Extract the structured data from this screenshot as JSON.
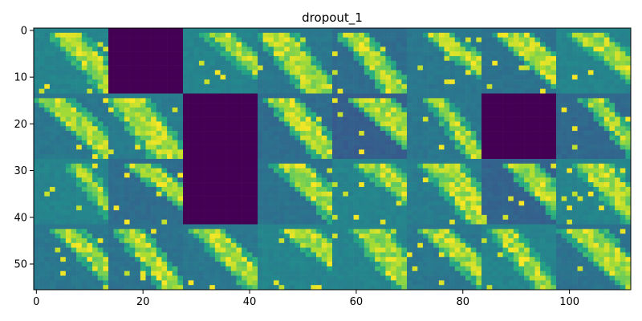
{
  "chart_data": {
    "type": "heatmap",
    "title": "dropout_1",
    "xlabel": "",
    "ylabel": "",
    "grid": false,
    "colormap": "viridis",
    "xlim": [
      -0.5,
      111.5
    ],
    "ylim": [
      55.5,
      -0.5
    ],
    "xticks": [
      0,
      20,
      40,
      60,
      80,
      100
    ],
    "yticks": [
      0,
      10,
      20,
      30,
      40,
      50
    ],
    "tile_grid": {
      "rows": 4,
      "cols": 8,
      "tile_size": 14
    },
    "tile_base_levels": [
      [
        0.45,
        0.0,
        0.45,
        0.4,
        0.36,
        0.4,
        0.38,
        0.45
      ],
      [
        0.4,
        0.42,
        0.0,
        0.36,
        0.3,
        0.4,
        0.0,
        0.34
      ],
      [
        0.45,
        0.36,
        0.0,
        0.38,
        0.45,
        0.42,
        0.32,
        0.45
      ],
      [
        0.4,
        0.38,
        0.4,
        0.45,
        0.45,
        0.4,
        0.45,
        0.38
      ]
    ],
    "colors": {
      "dark": "#440154",
      "teal": "#21918c",
      "blue": "#31688e",
      "green": "#5ec962",
      "yellow": "#fde725"
    }
  }
}
